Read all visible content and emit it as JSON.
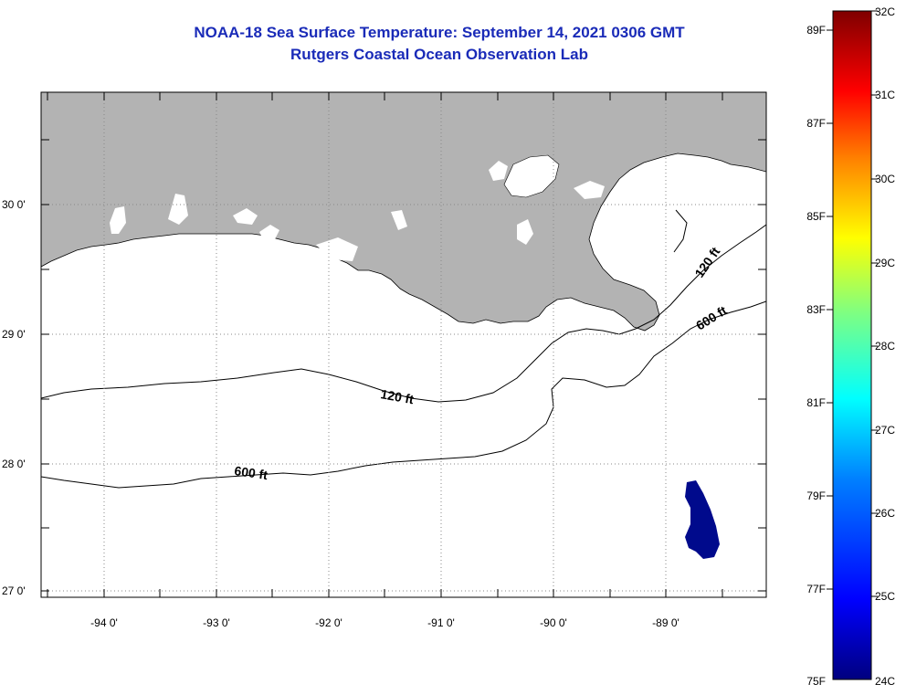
{
  "title": {
    "line1": "NOAA-18 Sea Surface Temperature:  September 14, 2021 0306 GMT",
    "line2": "Rutgers Coastal Ocean Observation Lab"
  },
  "map": {
    "lon_labels": [
      "-94 0'",
      "-93 0'",
      "-92 0'",
      "-91 0'",
      "-90 0'",
      "-89 0'"
    ],
    "lat_labels": [
      "30 0'",
      "29 0'",
      "28 0'",
      "27 0'"
    ],
    "contours": {
      "shallow": [
        "120 ft",
        "120 ft"
      ],
      "deep": [
        "600 ft",
        "600 ft"
      ]
    },
    "land_color": "#b3b3b3",
    "water_color": "#ffffff",
    "sst_patch_color": "#000a8c"
  },
  "colorbar": {
    "fahrenheit_labels": [
      "89F",
      "87F",
      "85F",
      "83F",
      "81F",
      "79F",
      "77F",
      "75F"
    ],
    "celsius_labels": [
      "32C",
      "31C",
      "30C",
      "29C",
      "28C",
      "27C",
      "26C",
      "25C",
      "24C"
    ],
    "gradient": [
      "#00007f",
      "#0000ff",
      "#0080ff",
      "#00ffff",
      "#80ff80",
      "#ffff00",
      "#ff8000",
      "#ff0000",
      "#7f0000"
    ]
  }
}
